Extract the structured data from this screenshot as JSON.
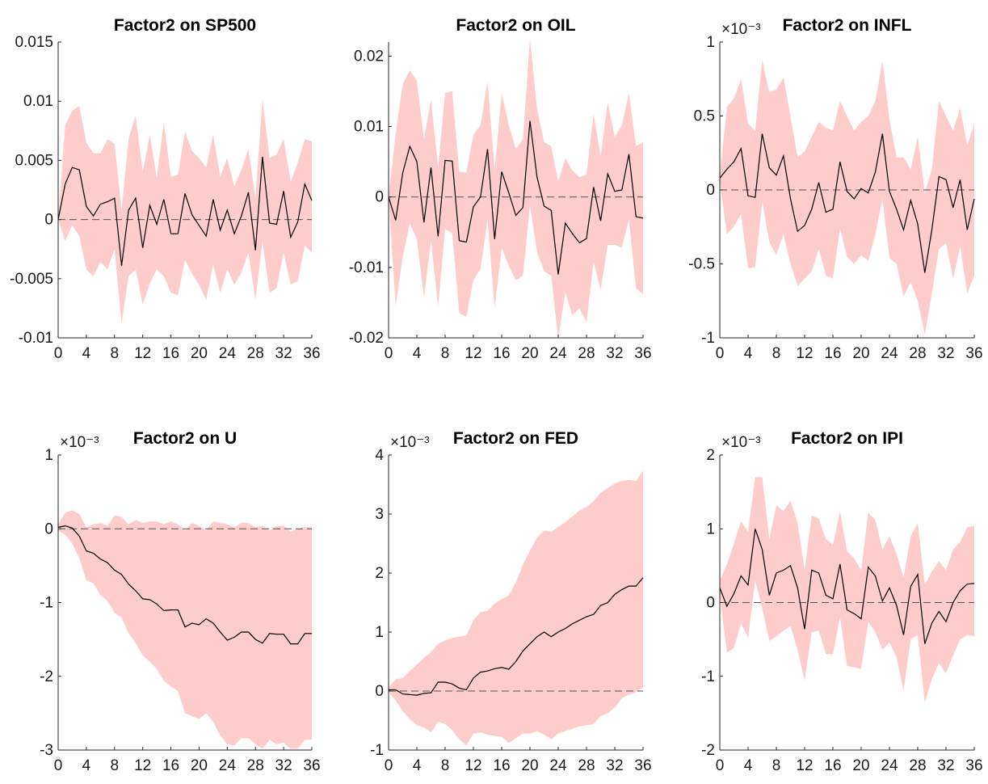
{
  "colors": {
    "band": "#ffcccc",
    "line": "#000000",
    "zero_line": "#555555"
  },
  "chart_data": [
    {
      "type": "area",
      "title": "Factor2 on SP500",
      "multiplier": "",
      "xlim": [
        0,
        36
      ],
      "ylim": [
        -0.01,
        0.015
      ],
      "xticks": [
        0,
        4,
        8,
        12,
        16,
        20,
        24,
        28,
        32,
        36
      ],
      "yticks": [
        -0.01,
        -0.005,
        0,
        0.005,
        0.01,
        0.015
      ],
      "ytick_labels": [
        "-0.01",
        "-0.005",
        "0",
        "0.005",
        "0.01",
        "0.015"
      ],
      "x": [
        0,
        1,
        2,
        3,
        4,
        5,
        6,
        7,
        8,
        9,
        10,
        11,
        12,
        13,
        14,
        15,
        16,
        17,
        18,
        19,
        20,
        21,
        22,
        23,
        24,
        25,
        26,
        27,
        28,
        29,
        30,
        31,
        32,
        33,
        34,
        35,
        36
      ],
      "median": [
        0,
        0.003,
        0.0044,
        0.0042,
        0.0011,
        0.0003,
        0.0013,
        0.0015,
        0.0018,
        -0.0039,
        0.0008,
        0.0018,
        -0.0024,
        0.0012,
        -0.0004,
        0.0017,
        -0.0012,
        -0.0012,
        0.0022,
        0.0004,
        -0.0005,
        -0.0014,
        0.0017,
        -0.0009,
        0.0008,
        -0.0012,
        0.0003,
        0.0023,
        -0.0026,
        0.0053,
        -0.0003,
        -0.0004,
        0.0024,
        -0.0015,
        -0.0002,
        0.003,
        0.0016
      ],
      "upper": [
        0,
        0.008,
        0.0092,
        0.0096,
        0.0065,
        0.0056,
        0.0056,
        0.0068,
        0.0064,
        0.0008,
        0.0068,
        0.0088,
        0.004,
        0.0072,
        0.0035,
        0.0082,
        0.0036,
        0.0038,
        0.0074,
        0.0058,
        0.0052,
        0.0044,
        0.0072,
        0.0036,
        0.0052,
        0.0028,
        0.0042,
        0.006,
        0.0018,
        0.0102,
        0.0052,
        0.0055,
        0.0068,
        0.0032,
        0.0048,
        0.0068,
        0.0066
      ],
      "lower": [
        0,
        -0.0018,
        -0.0005,
        -0.0014,
        -0.0042,
        -0.0048,
        -0.0036,
        -0.0042,
        -0.0025,
        -0.0088,
        -0.0048,
        -0.0042,
        -0.0072,
        -0.0054,
        -0.0042,
        -0.0048,
        -0.0062,
        -0.0064,
        -0.0034,
        -0.0046,
        -0.0055,
        -0.0068,
        -0.0038,
        -0.0062,
        -0.0042,
        -0.0055,
        -0.0045,
        -0.0028,
        -0.0068,
        -0.0018,
        -0.0062,
        -0.0058,
        -0.0028,
        -0.0055,
        -0.0052,
        -0.0022,
        -0.0028
      ]
    },
    {
      "type": "area",
      "title": "Factor2 on OIL",
      "multiplier": "",
      "xlim": [
        0,
        36
      ],
      "ylim": [
        -0.02,
        0.022
      ],
      "xticks": [
        0,
        4,
        8,
        12,
        16,
        20,
        24,
        28,
        32,
        36
      ],
      "yticks": [
        -0.02,
        -0.01,
        0,
        0.01,
        0.02
      ],
      "ytick_labels": [
        "-0.02",
        "-0.01",
        "0",
        "0.01",
        "0.02"
      ],
      "x": [
        0,
        1,
        2,
        3,
        4,
        5,
        6,
        7,
        8,
        9,
        10,
        11,
        12,
        13,
        14,
        15,
        16,
        17,
        18,
        19,
        20,
        21,
        22,
        23,
        24,
        25,
        26,
        27,
        28,
        29,
        30,
        31,
        32,
        33,
        34,
        35,
        36
      ],
      "median": [
        0,
        -0.0033,
        0.0034,
        0.0072,
        0.005,
        -0.0036,
        0.0042,
        -0.0056,
        0.0052,
        0.0051,
        -0.0062,
        -0.0064,
        -0.0014,
        0,
        0.0068,
        -0.006,
        0.0036,
        0.0006,
        -0.0026,
        -0.0015,
        0.0108,
        0.0028,
        -0.0013,
        -0.0019,
        -0.011,
        -0.0037,
        -0.0052,
        -0.0065,
        -0.0059,
        0.0014,
        -0.0034,
        0.0033,
        0.0008,
        0.001,
        0.0061,
        -0.0028,
        -0.003
      ],
      "upper": [
        0,
        0.009,
        0.016,
        0.018,
        0.0165,
        0.0082,
        0.0138,
        0.0042,
        0.0148,
        0.015,
        0.0036,
        0.0035,
        0.0088,
        0.0102,
        0.0164,
        0.0038,
        0.0148,
        0.0102,
        0.0068,
        0.0082,
        0.0225,
        0.0125,
        0.0078,
        0.0072,
        0.0022,
        0.0055,
        0.0038,
        0.0028,
        0.0032,
        0.0118,
        0.0058,
        0.0135,
        0.0085,
        0.0102,
        0.0148,
        0.0072,
        0.0078
      ],
      "lower": [
        0,
        -0.0155,
        -0.0085,
        -0.0038,
        -0.006,
        -0.0142,
        -0.0062,
        -0.0156,
        -0.0045,
        -0.0052,
        -0.0165,
        -0.017,
        -0.0118,
        -0.0102,
        -0.0032,
        -0.0158,
        -0.0072,
        -0.0098,
        -0.0118,
        -0.0112,
        -0.0012,
        -0.0078,
        -0.0105,
        -0.0112,
        -0.0202,
        -0.0135,
        -0.0168,
        -0.0158,
        -0.0178,
        -0.0092,
        -0.0132,
        -0.0068,
        -0.0068,
        -0.0072,
        -0.0032,
        -0.013,
        -0.0138
      ]
    },
    {
      "type": "area",
      "title": "Factor2 on INFL",
      "multiplier": "×10⁻³",
      "xlim": [
        0,
        36
      ],
      "ylim": [
        -1,
        1
      ],
      "xticks": [
        0,
        4,
        8,
        12,
        16,
        20,
        24,
        28,
        32,
        36
      ],
      "yticks": [
        -1,
        -0.5,
        0,
        0.5,
        1
      ],
      "ytick_labels": [
        "-1",
        "-0.5",
        "0",
        "0.5",
        "1"
      ],
      "x": [
        0,
        1,
        2,
        3,
        4,
        5,
        6,
        7,
        8,
        9,
        10,
        11,
        12,
        13,
        14,
        15,
        16,
        17,
        18,
        19,
        20,
        21,
        22,
        23,
        24,
        25,
        26,
        27,
        28,
        29,
        30,
        31,
        32,
        33,
        34,
        35,
        36
      ],
      "median": [
        0.08,
        0.14,
        0.19,
        0.28,
        -0.04,
        -0.05,
        0.38,
        0.15,
        0.1,
        0.23,
        -0.06,
        -0.28,
        -0.24,
        -0.13,
        0.05,
        -0.15,
        -0.13,
        0.19,
        -0.01,
        -0.06,
        0.01,
        -0.02,
        0.12,
        0.38,
        -0.01,
        -0.13,
        -0.27,
        -0.07,
        -0.23,
        -0.56,
        -0.27,
        0.09,
        0.07,
        -0.12,
        0.07,
        -0.27,
        -0.06
      ],
      "upper": [
        0.1,
        0.56,
        0.62,
        0.75,
        0.45,
        0.4,
        0.88,
        0.66,
        0.68,
        0.76,
        0.5,
        0.22,
        0.26,
        0.36,
        0.46,
        0.42,
        0.4,
        0.6,
        0.5,
        0.4,
        0.46,
        0.5,
        0.6,
        0.87,
        0.48,
        0.22,
        0.22,
        0.14,
        0.36,
        -0.02,
        0.14,
        0.6,
        0.5,
        0.4,
        0.55,
        0.3,
        0.45
      ],
      "lower": [
        0.06,
        -0.3,
        -0.25,
        -0.16,
        -0.53,
        -0.52,
        -0.08,
        -0.35,
        -0.44,
        -0.3,
        -0.5,
        -0.65,
        -0.6,
        -0.55,
        -0.4,
        -0.58,
        -0.6,
        -0.26,
        -0.45,
        -0.5,
        -0.44,
        -0.48,
        -0.3,
        -0.06,
        -0.46,
        -0.5,
        -0.72,
        -0.62,
        -0.75,
        -0.98,
        -0.7,
        -0.4,
        -0.36,
        -0.6,
        -0.38,
        -0.7,
        -0.58
      ]
    },
    {
      "type": "area",
      "title": "Factor2 on U",
      "multiplier": "×10⁻³",
      "xlim": [
        0,
        36
      ],
      "ylim": [
        -3,
        1
      ],
      "xticks": [
        0,
        4,
        8,
        12,
        16,
        20,
        24,
        28,
        32,
        36
      ],
      "yticks": [
        -3,
        -2,
        -1,
        0,
        1
      ],
      "ytick_labels": [
        "-3",
        "-2",
        "-1",
        "0",
        "1"
      ],
      "x": [
        0,
        1,
        2,
        3,
        4,
        5,
        6,
        7,
        8,
        9,
        10,
        11,
        12,
        13,
        14,
        15,
        16,
        17,
        18,
        19,
        20,
        21,
        22,
        23,
        24,
        25,
        26,
        27,
        28,
        29,
        30,
        31,
        32,
        33,
        34,
        35,
        36
      ],
      "median": [
        0.02,
        0.04,
        0.01,
        -0.1,
        -0.3,
        -0.33,
        -0.41,
        -0.46,
        -0.56,
        -0.62,
        -0.75,
        -0.84,
        -0.95,
        -0.96,
        -1.02,
        -1.11,
        -1.1,
        -1.1,
        -1.33,
        -1.28,
        -1.3,
        -1.22,
        -1.28,
        -1.4,
        -1.51,
        -1.47,
        -1.4,
        -1.4,
        -1.5,
        -1.55,
        -1.42,
        -1.43,
        -1.43,
        -1.56,
        -1.56,
        -1.42,
        -1.42
      ],
      "upper": [
        0.06,
        0.22,
        0.25,
        0.2,
        0.02,
        0.06,
        0.08,
        0.04,
        0.18,
        0.16,
        0.06,
        0.12,
        0.08,
        0.1,
        0.1,
        0.06,
        0.1,
        0.06,
        -0.02,
        0.08,
        0.04,
        -0.02,
        0.1,
        0.08,
        0.06,
        0.02,
        0.08,
        0.08,
        0.02,
        0.04,
        -0.02,
        0.04,
        0.04,
        -0.04,
        0,
        0.02,
        0.02
      ],
      "lower": [
        -0.02,
        -0.08,
        -0.2,
        -0.4,
        -0.7,
        -0.74,
        -0.9,
        -0.98,
        -1.14,
        -1.2,
        -1.42,
        -1.55,
        -1.72,
        -1.8,
        -1.9,
        -2.06,
        -2.14,
        -2.2,
        -2.5,
        -2.54,
        -2.58,
        -2.5,
        -2.62,
        -2.8,
        -2.92,
        -2.94,
        -2.84,
        -2.84,
        -2.92,
        -2.98,
        -2.86,
        -2.92,
        -2.9,
        -2.98,
        -2.98,
        -2.86,
        -2.86
      ]
    },
    {
      "type": "area",
      "title": "Factor2 on FED",
      "multiplier": "×10⁻³",
      "xlim": [
        0,
        36
      ],
      "ylim": [
        -1,
        4
      ],
      "xticks": [
        0,
        4,
        8,
        12,
        16,
        20,
        24,
        28,
        32,
        36
      ],
      "yticks": [
        -1,
        0,
        1,
        2,
        3,
        4
      ],
      "ytick_labels": [
        "-1",
        "0",
        "1",
        "2",
        "3",
        "4"
      ],
      "x": [
        0,
        1,
        2,
        3,
        4,
        5,
        6,
        7,
        8,
        9,
        10,
        11,
        12,
        13,
        14,
        15,
        16,
        17,
        18,
        19,
        20,
        21,
        22,
        23,
        24,
        25,
        26,
        27,
        28,
        29,
        30,
        31,
        32,
        33,
        34,
        35,
        36
      ],
      "median": [
        0.02,
        0.02,
        -0.05,
        -0.06,
        -0.07,
        -0.04,
        -0.03,
        0.15,
        0.15,
        0.12,
        0.05,
        0.02,
        0.22,
        0.32,
        0.34,
        0.38,
        0.4,
        0.37,
        0.5,
        0.68,
        0.8,
        0.92,
        1.0,
        0.92,
        1.0,
        1.06,
        1.14,
        1.2,
        1.26,
        1.3,
        1.45,
        1.5,
        1.64,
        1.72,
        1.78,
        1.78,
        1.92
      ],
      "upper": [
        0.06,
        0.2,
        0.22,
        0.34,
        0.45,
        0.56,
        0.66,
        0.8,
        0.86,
        0.9,
        0.92,
        0.94,
        1.2,
        1.34,
        1.36,
        1.48,
        1.56,
        1.62,
        1.84,
        2.14,
        2.38,
        2.6,
        2.72,
        2.7,
        2.78,
        2.86,
        2.96,
        3.06,
        3.12,
        3.22,
        3.36,
        3.44,
        3.52,
        3.56,
        3.58,
        3.56,
        3.74
      ],
      "lower": [
        -0.02,
        -0.16,
        -0.34,
        -0.48,
        -0.58,
        -0.62,
        -0.7,
        -0.52,
        -0.56,
        -0.66,
        -0.82,
        -0.92,
        -0.72,
        -0.7,
        -0.74,
        -0.76,
        -0.78,
        -0.88,
        -0.8,
        -0.72,
        -0.72,
        -0.68,
        -0.74,
        -0.82,
        -0.72,
        -0.68,
        -0.64,
        -0.6,
        -0.58,
        -0.56,
        -0.42,
        -0.38,
        -0.28,
        -0.12,
        -0.06,
        -0.02,
        0.06
      ]
    },
    {
      "type": "area",
      "title": "Factor2 on IPI",
      "multiplier": "×10⁻³",
      "xlim": [
        0,
        36
      ],
      "ylim": [
        -2,
        2
      ],
      "xticks": [
        0,
        4,
        8,
        12,
        16,
        20,
        24,
        28,
        32,
        36
      ],
      "yticks": [
        -2,
        -1,
        0,
        1,
        2
      ],
      "ytick_labels": [
        "-2",
        "-1",
        "0",
        "1",
        "2"
      ],
      "x": [
        0,
        1,
        2,
        3,
        4,
        5,
        6,
        7,
        8,
        9,
        10,
        11,
        12,
        13,
        14,
        15,
        16,
        17,
        18,
        19,
        20,
        21,
        22,
        23,
        24,
        25,
        26,
        27,
        28,
        29,
        30,
        31,
        32,
        33,
        34,
        35,
        36
      ],
      "median": [
        0.2,
        -0.05,
        0.12,
        0.36,
        0.24,
        1.0,
        0.72,
        0.1,
        0.4,
        0.44,
        0.5,
        0.2,
        -0.36,
        0.44,
        0.4,
        0.1,
        0.05,
        0.52,
        -0.1,
        -0.15,
        -0.22,
        0.48,
        0.36,
        0.02,
        0.2,
        -0.04,
        -0.44,
        0.22,
        0.38,
        -0.56,
        -0.28,
        -0.12,
        -0.26,
        0,
        0.16,
        0.25,
        0.26
      ],
      "upper": [
        0.3,
        0.52,
        0.8,
        1.1,
        0.96,
        1.7,
        1.7,
        0.86,
        1.32,
        1.24,
        1.38,
        1.08,
        0.44,
        1.18,
        1.14,
        0.86,
        0.78,
        1.24,
        0.7,
        0.6,
        0.44,
        1.22,
        1.12,
        0.72,
        0.9,
        0.66,
        0.34,
        0.9,
        1.08,
        0.24,
        0.42,
        0.56,
        0.44,
        0.72,
        0.82,
        1.02,
        1.04
      ],
      "lower": [
        0.1,
        -0.68,
        -0.62,
        -0.28,
        -0.48,
        0.3,
        -0.08,
        -0.52,
        -0.46,
        -0.38,
        -0.32,
        -0.64,
        -1.06,
        -0.4,
        -0.38,
        -0.7,
        -0.7,
        -0.2,
        -0.86,
        -0.88,
        -0.9,
        -0.26,
        -0.4,
        -0.64,
        -0.54,
        -0.74,
        -1.2,
        -0.5,
        -0.44,
        -1.36,
        -1.04,
        -0.82,
        -0.96,
        -0.72,
        -0.5,
        -0.44,
        -0.46
      ]
    }
  ]
}
